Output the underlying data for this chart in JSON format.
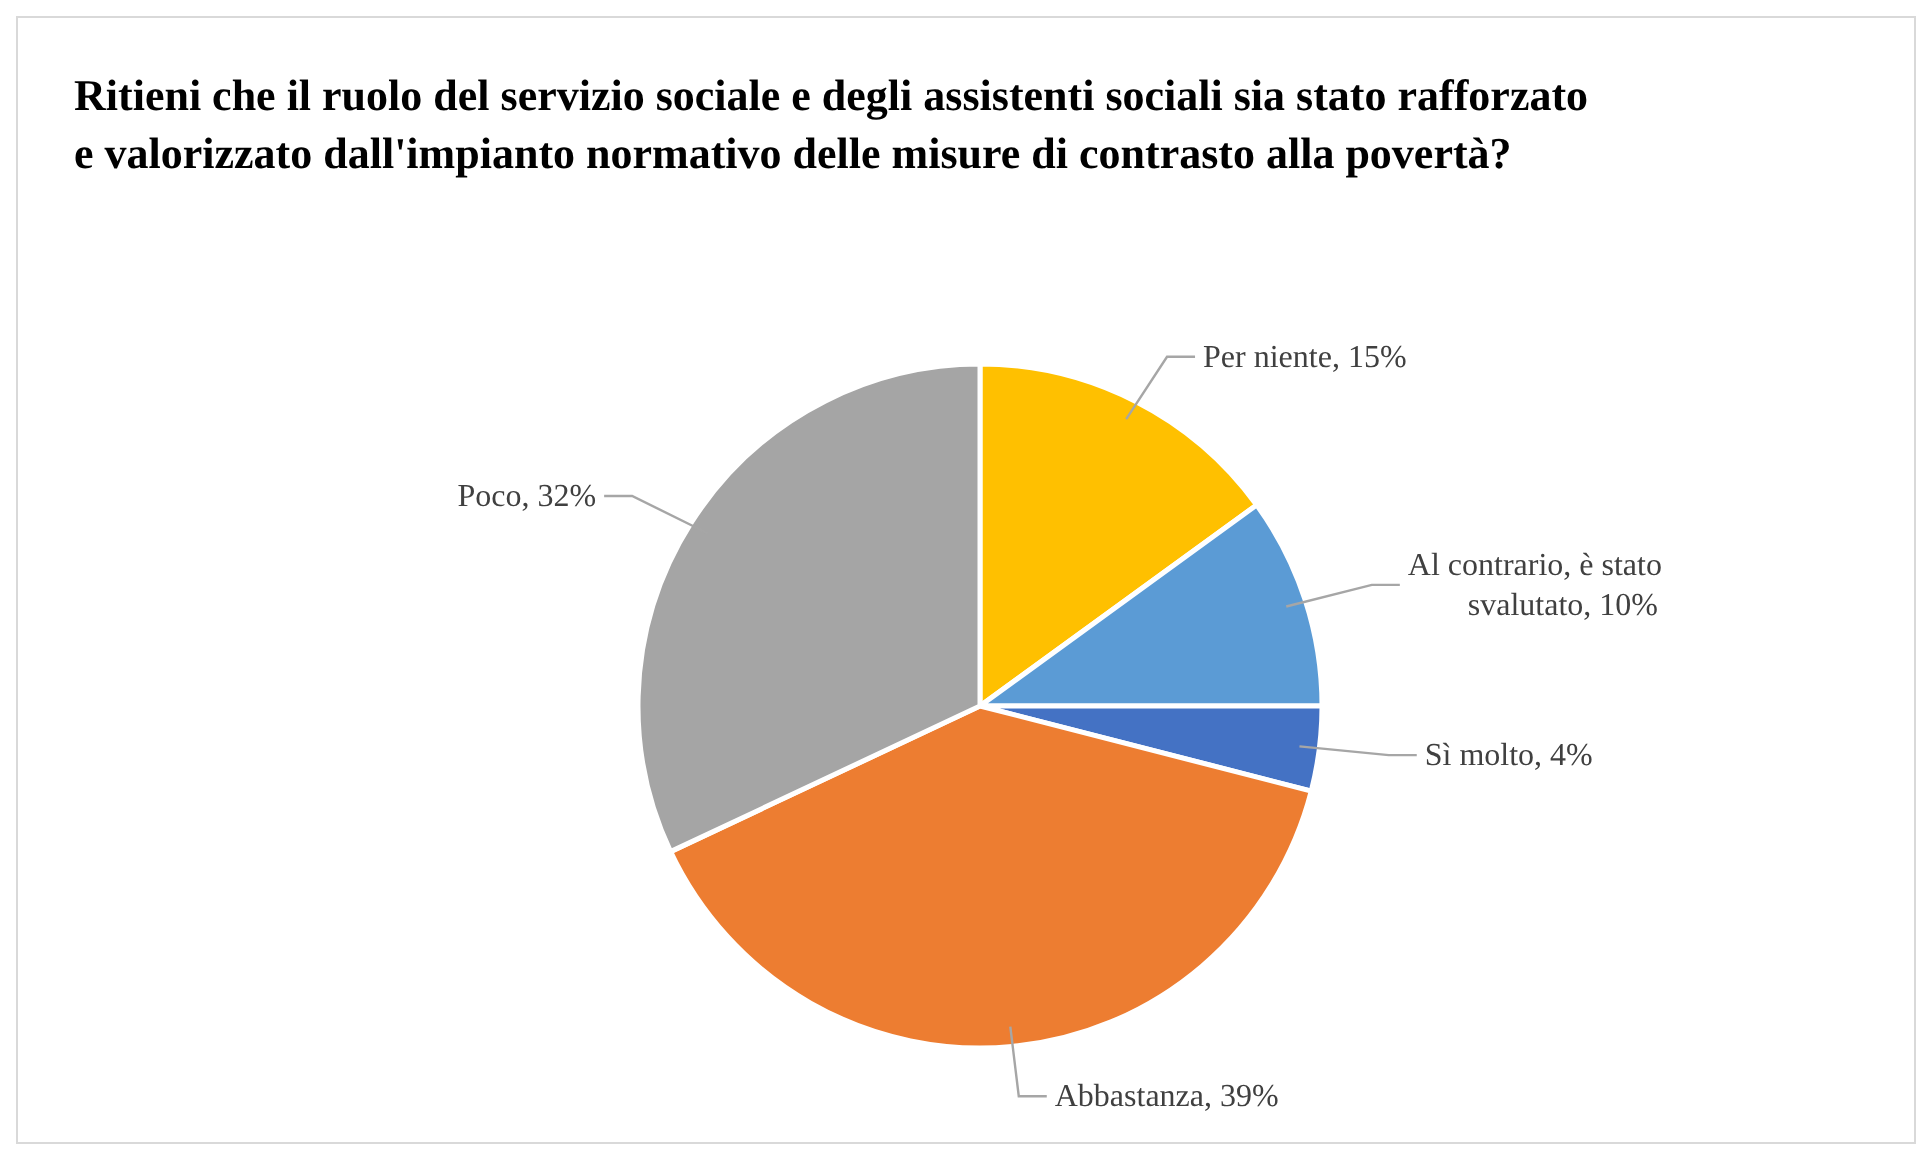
{
  "chart_data": {
    "type": "pie",
    "title": "Ritieni che il ruolo del servizio sociale e degli assistenti sociali sia stato rafforzato e valorizzato dall'impianto normativo delle misure di contrasto alla povertà?",
    "categories": [
      "Per niente",
      "Al contrario, è stato svalutato",
      "Sì molto",
      "Abbastanza",
      "Poco"
    ],
    "values": [
      15,
      10,
      4,
      39,
      32
    ],
    "value_labels": [
      "15%",
      "10%",
      "4%",
      "39%",
      "32%"
    ],
    "colors": [
      "#ffc000",
      "#5b9bd5",
      "#4472c4",
      "#ed7d31",
      "#a5a5a5"
    ]
  }
}
